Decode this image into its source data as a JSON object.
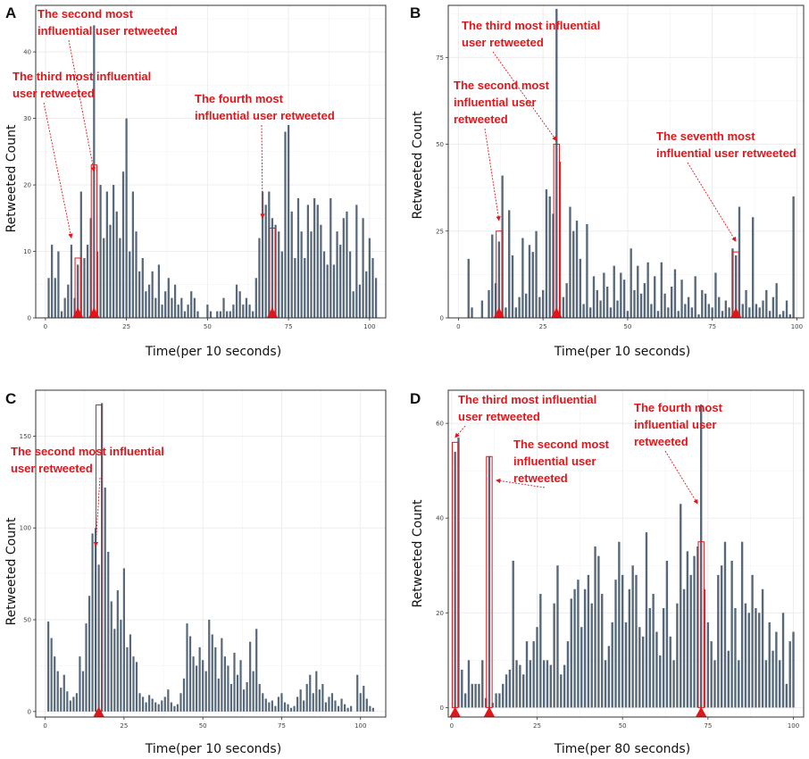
{
  "colors": {
    "bar": "#56687a",
    "annotation": "#e0161b",
    "grid": "#ebebeb",
    "frame": "#333333"
  },
  "chart_data": [
    {
      "panel": "A",
      "type": "bar",
      "title": "",
      "xlabel": "Time(per 10 seconds)",
      "ylabel": "Retweeted Count",
      "xlim": [
        -3,
        105
      ],
      "ylim": [
        0,
        47
      ],
      "xticks": [
        "0",
        "25",
        "50",
        "75",
        "100"
      ],
      "xtick_values": [
        0,
        25,
        50,
        75,
        100
      ],
      "yticks": [
        "0",
        "10",
        "20",
        "30",
        "40"
      ],
      "ytick_values": [
        0,
        10,
        20,
        30,
        40
      ],
      "values": [
        0,
        6,
        11,
        6,
        10,
        1,
        3,
        5,
        11,
        3,
        8,
        19,
        9,
        11,
        15,
        44,
        10,
        20,
        12,
        19,
        14,
        20,
        16,
        12,
        22,
        30,
        10,
        19,
        13,
        7,
        9,
        4,
        5,
        7,
        3,
        8,
        2,
        4,
        6,
        3,
        5,
        2,
        3,
        1,
        2,
        4,
        3,
        1,
        0,
        0,
        2,
        1,
        0,
        1,
        1,
        3,
        1,
        1,
        2,
        5,
        4,
        2,
        3,
        2,
        1,
        6,
        12,
        19,
        17,
        19,
        15,
        14,
        13,
        10,
        28,
        29,
        16,
        9,
        18,
        13,
        9,
        17,
        13,
        18,
        17,
        14,
        10,
        8,
        18,
        8,
        13,
        11,
        15,
        16,
        10,
        4,
        17,
        5,
        15,
        7,
        12,
        9,
        6
      ],
      "markers": [
        10,
        15,
        70
      ],
      "boxes": [
        {
          "x": 10,
          "h": 9
        },
        {
          "x": 15,
          "h": 23
        },
        {
          "x": 70,
          "h": 13.5
        }
      ],
      "annotations": [
        {
          "lines": [
            "The second most",
            "influential user retweeted"
          ],
          "target_x": 15,
          "target_y": 22
        },
        {
          "lines": [
            "The third most influential",
            "user retweeted"
          ],
          "target_x": 8,
          "target_y": 12
        },
        {
          "lines": [
            "The fourth most",
            "influential user retweeted"
          ],
          "target_x": 67,
          "target_y": 15
        }
      ]
    },
    {
      "panel": "B",
      "type": "bar",
      "title": "",
      "xlabel": "Time(per 10 seconds)",
      "ylabel": "Retweeted Count",
      "xlim": [
        -3,
        102
      ],
      "ylim": [
        0,
        90
      ],
      "xticks": [
        "0",
        "25",
        "50",
        "75",
        "100"
      ],
      "xtick_values": [
        0,
        25,
        50,
        75,
        100
      ],
      "yticks": [
        "0",
        "25",
        "50",
        "75"
      ],
      "ytick_values": [
        0,
        25,
        50,
        75
      ],
      "values": [
        0,
        0,
        0,
        17,
        3,
        0,
        0,
        5,
        0,
        8,
        24,
        10,
        22,
        41,
        3,
        31,
        18,
        3,
        6,
        23,
        7,
        21,
        19,
        25,
        6,
        8,
        37,
        35,
        30,
        89,
        45,
        6,
        10,
        32,
        25,
        28,
        17,
        4,
        27,
        3,
        12,
        8,
        5,
        13,
        9,
        3,
        15,
        5,
        13,
        11,
        2,
        20,
        8,
        15,
        7,
        10,
        16,
        4,
        12,
        2,
        16,
        7,
        3,
        9,
        14,
        2,
        11,
        4,
        6,
        3,
        12,
        1,
        8,
        7,
        4,
        3,
        13,
        6,
        2,
        5,
        3,
        20,
        18,
        32,
        4,
        8,
        3,
        29,
        4,
        3,
        5,
        8,
        2,
        6,
        10,
        1,
        2,
        5,
        1,
        35
      ],
      "markers": [
        12,
        29,
        82
      ],
      "boxes": [
        {
          "x": 12,
          "h": 25
        },
        {
          "x": 29,
          "h": 50
        },
        {
          "x": 82,
          "h": 19
        }
      ],
      "annotations": [
        {
          "lines": [
            "The third most influential",
            "user retweeted"
          ],
          "target_x": 29,
          "target_y": 51
        },
        {
          "lines": [
            "The second most",
            "influential user",
            "retweeted"
          ],
          "target_x": 12,
          "target_y": 28
        },
        {
          "lines": [
            "The seventh most",
            "influential user retweeted"
          ],
          "target_x": 82,
          "target_y": 22
        }
      ]
    },
    {
      "panel": "C",
      "type": "bar",
      "title": "",
      "xlabel": "Time(per 10 seconds)",
      "ylabel": "Retweeted Count",
      "xlim": [
        -3,
        108
      ],
      "ylim": [
        -3,
        175
      ],
      "xticks": [
        "0",
        "25",
        "50",
        "75",
        "100"
      ],
      "xtick_values": [
        0,
        25,
        50,
        75,
        100
      ],
      "yticks": [
        "0",
        "50",
        "100",
        "150"
      ],
      "ytick_values": [
        0,
        50,
        100,
        150
      ],
      "values": [
        0,
        49,
        40,
        30,
        22,
        13,
        20,
        11,
        6,
        8,
        10,
        30,
        22,
        48,
        63,
        97,
        100,
        80,
        168,
        122,
        87,
        60,
        45,
        66,
        50,
        78,
        35,
        42,
        30,
        27,
        10,
        8,
        5,
        9,
        7,
        5,
        4,
        6,
        8,
        12,
        5,
        3,
        4,
        10,
        18,
        48,
        41,
        30,
        25,
        35,
        28,
        22,
        50,
        42,
        35,
        18,
        40,
        30,
        25,
        15,
        32,
        20,
        28,
        12,
        16,
        38,
        22,
        45,
        15,
        10,
        7,
        5,
        6,
        3,
        8,
        10,
        5,
        4,
        2,
        3,
        8,
        12,
        6,
        15,
        20,
        10,
        22,
        12,
        15,
        5,
        8,
        10,
        6,
        3,
        7,
        4,
        2,
        3,
        0,
        20,
        10,
        14,
        7,
        3,
        2,
        0
      ],
      "markers": [
        17
      ],
      "boxes": [
        {
          "x": 17,
          "h": 167
        }
      ],
      "annotations": [
        {
          "lines": [
            "The second most influential",
            "user retweeted"
          ],
          "target_x": 16,
          "target_y": 90
        }
      ]
    },
    {
      "panel": "D",
      "type": "bar",
      "title": "",
      "xlabel": "Time(per 80 seconds)",
      "ylabel": "Retweeted Count",
      "xlim": [
        -1,
        103
      ],
      "ylim": [
        -2,
        67
      ],
      "xticks": [
        "0",
        "25",
        "50",
        "75",
        "100"
      ],
      "xtick_values": [
        0,
        25,
        50,
        75,
        100
      ],
      "yticks": [
        "0",
        "20",
        "40",
        "60"
      ],
      "ytick_values": [
        0,
        20,
        40,
        60
      ],
      "values": [
        0,
        54,
        57,
        8,
        3,
        10,
        5,
        5,
        5,
        10,
        2,
        53,
        1,
        3,
        3,
        5,
        7,
        8,
        31,
        10,
        9,
        7,
        14,
        10,
        14,
        17,
        24,
        10,
        10,
        9,
        22,
        30,
        7,
        9,
        14,
        23,
        25,
        27,
        17,
        25,
        28,
        22,
        34,
        32,
        24,
        10,
        13,
        18,
        27,
        35,
        28,
        18,
        25,
        30,
        28,
        17,
        15,
        37,
        21,
        24,
        16,
        11,
        21,
        31,
        15,
        10,
        22,
        43,
        25,
        33,
        28,
        32,
        34,
        64,
        25,
        18,
        14,
        10,
        28,
        30,
        35,
        12,
        31,
        21,
        10,
        35,
        22,
        20,
        28,
        21,
        20,
        25,
        10,
        18,
        12,
        16,
        10,
        20,
        5,
        14,
        16
      ],
      "markers": [
        1,
        11,
        73
      ],
      "boxes": [
        {
          "x": 1,
          "h": 56
        },
        {
          "x": 11,
          "h": 53
        },
        {
          "x": 73,
          "h": 35
        }
      ],
      "annotations": [
        {
          "lines": [
            "The third most influential",
            "user retweeted"
          ],
          "target_x": 1,
          "target_y": 57
        },
        {
          "lines": [
            "The second most",
            "influential user",
            "retweeted"
          ],
          "target_x": 13,
          "target_y": 48
        },
        {
          "lines": [
            "The fourth most",
            "influential user",
            "retweeted"
          ],
          "target_x": 72,
          "target_y": 43
        }
      ]
    }
  ]
}
